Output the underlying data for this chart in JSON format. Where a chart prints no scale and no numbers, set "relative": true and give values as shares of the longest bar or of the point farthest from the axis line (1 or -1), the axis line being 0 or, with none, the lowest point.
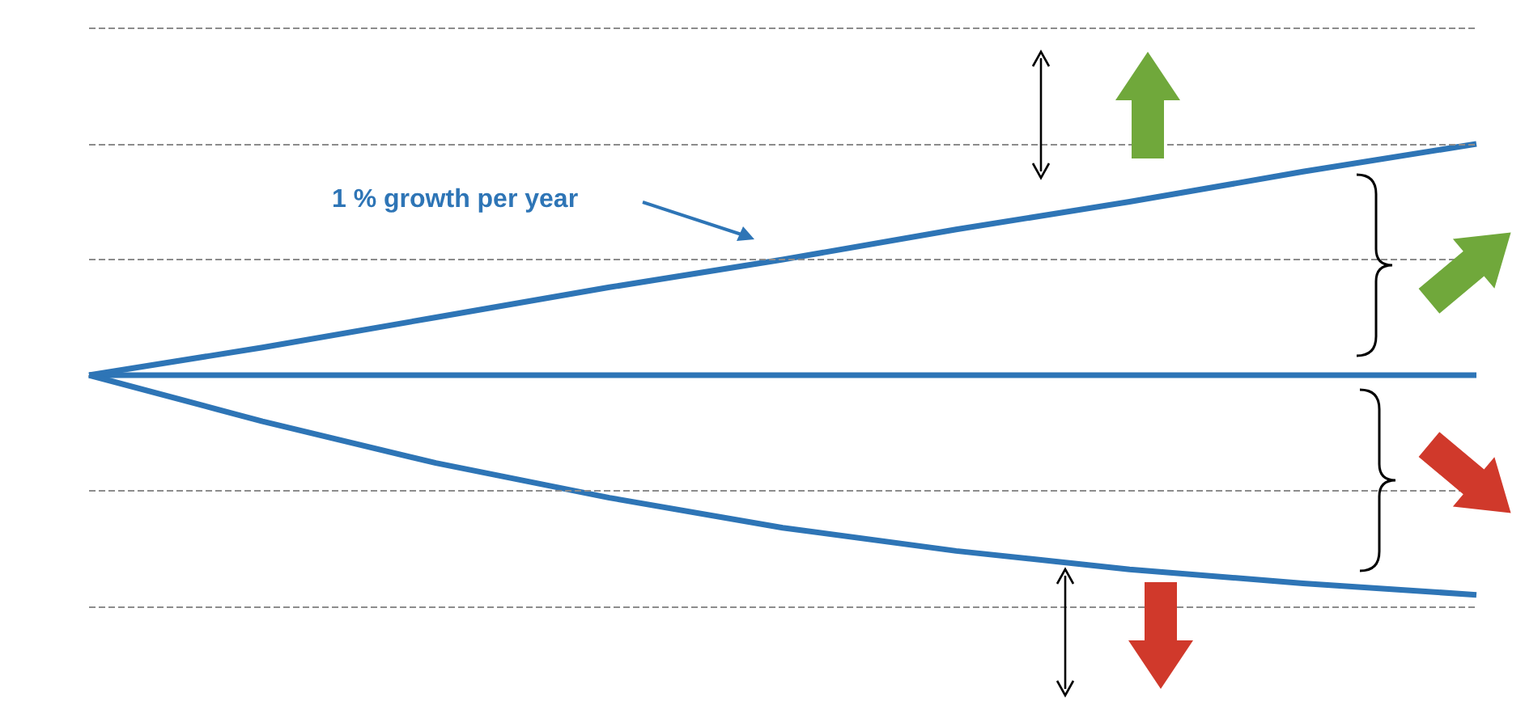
{
  "chart_data": {
    "type": "line",
    "relative": true,
    "categories": [
      null,
      null,
      null,
      null,
      null,
      null,
      null,
      null,
      null
    ],
    "series": [
      {
        "color": "#2e75b6",
        "values": [
          0,
          0.12,
          0.25,
          0.38,
          0.5,
          0.63,
          0.75,
          0.88,
          1
        ]
      },
      {
        "color": "#2e75b6",
        "values": [
          0,
          0,
          0,
          0,
          0,
          0,
          0,
          0,
          0
        ]
      },
      {
        "color": "#2e75b6",
        "values": [
          0,
          -0.2,
          -0.38,
          -0.53,
          -0.66,
          -0.76,
          -0.84,
          -0.9,
          -0.95
        ]
      }
    ],
    "annotations": [
      "1 % growth per year"
    ],
    "ref_lines": [
      {
        "axis": "y",
        "value": 1.5,
        "color": "#8c8c8c",
        "line_style": "dashed"
      },
      {
        "axis": "y",
        "value": 1,
        "color": "#8c8c8c",
        "line_style": "dashed"
      },
      {
        "axis": "y",
        "value": 0.5,
        "color": "#8c8c8c",
        "line_style": "dashed"
      },
      {
        "axis": "y",
        "value": -0.5,
        "color": "#8c8c8c",
        "line_style": "dashed"
      },
      {
        "axis": "y",
        "value": -1,
        "color": "#8c8c8c",
        "line_style": "dashed"
      }
    ],
    "marker": "none",
    "line_style": "solid"
  }
}
